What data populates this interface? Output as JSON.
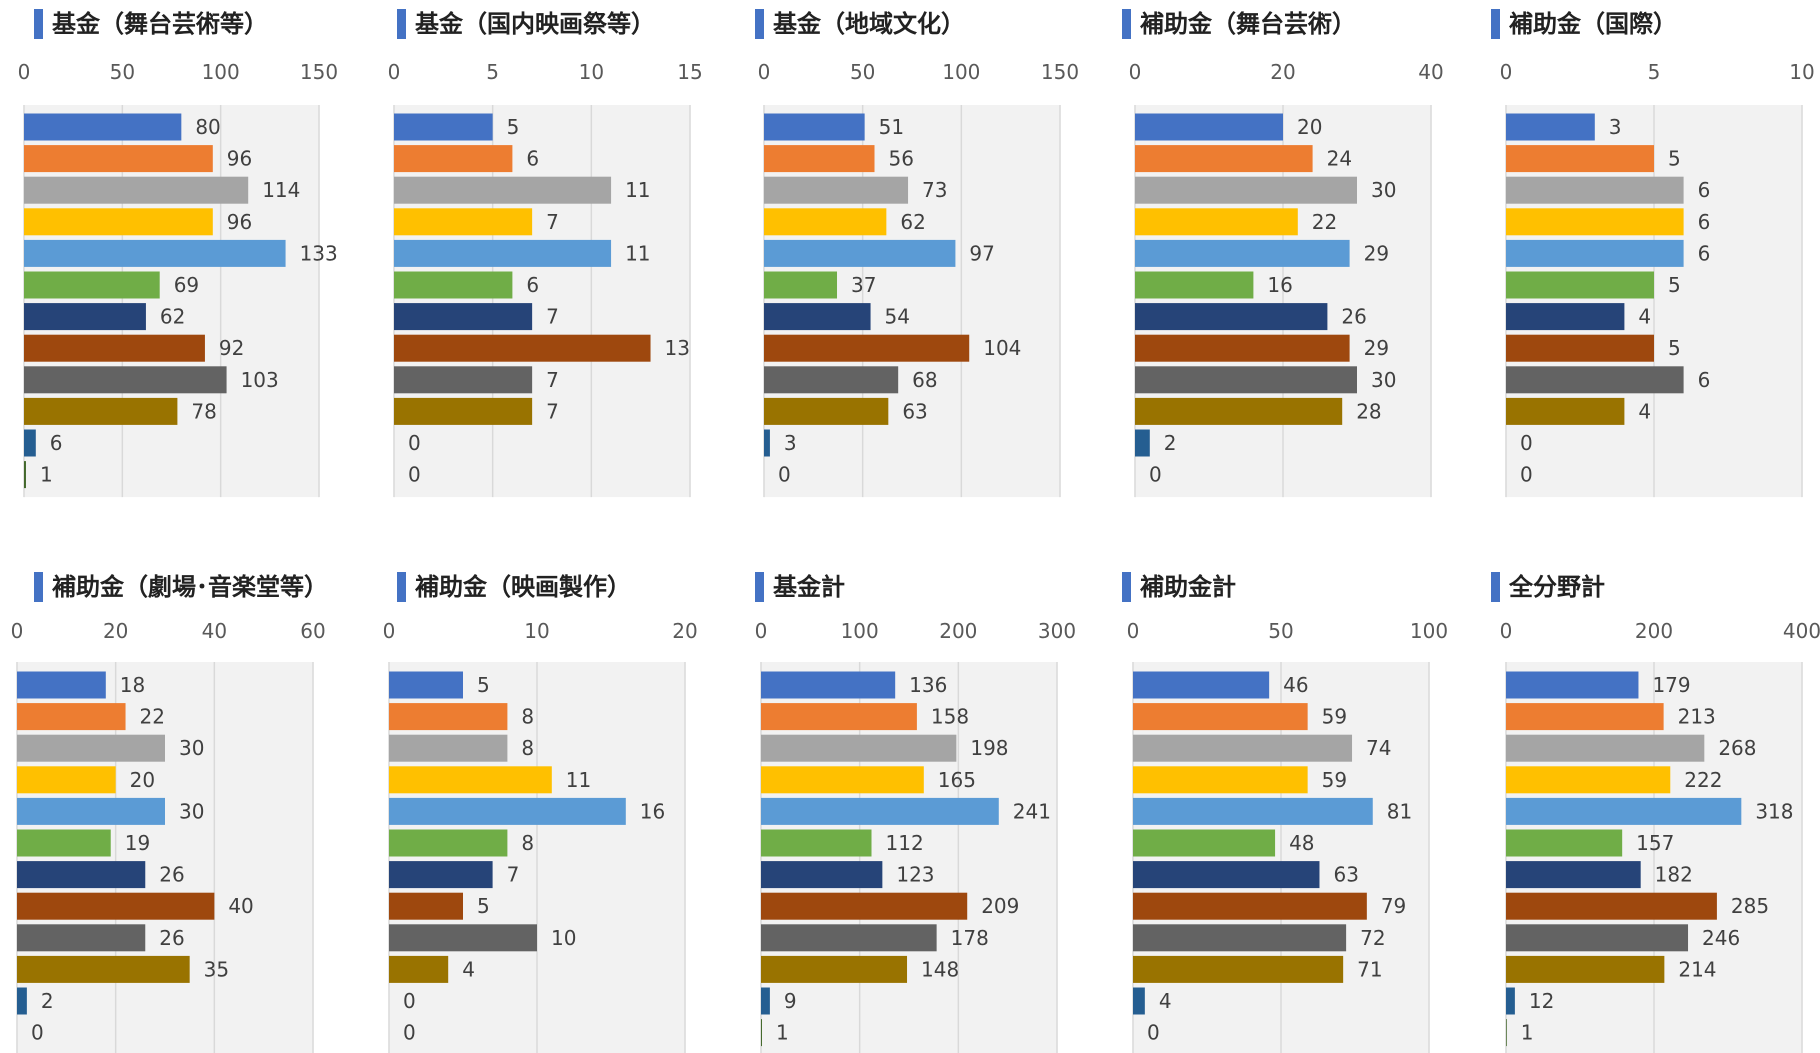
{
  "palette": [
    "#4472C4",
    "#ED7D31",
    "#A5A5A5",
    "#FFC000",
    "#5B9BD5",
    "#70AD47",
    "#264478",
    "#9E480E",
    "#636363",
    "#997300",
    "#255E91",
    "#43682B"
  ],
  "grid_color": "#D9D9D9",
  "plot_bg": "#F2F2F2",
  "chart_data": [
    {
      "type": "bar",
      "orientation": "horizontal",
      "title": "基金（舞台芸術等）",
      "ticks": [
        "0",
        "50",
        "100",
        "150"
      ],
      "xlim": [
        0,
        150
      ],
      "values": [
        80,
        96,
        114,
        96,
        133,
        69,
        62,
        92,
        103,
        78,
        6,
        1
      ]
    },
    {
      "type": "bar",
      "orientation": "horizontal",
      "title": "基金（国内映画祭等）",
      "ticks": [
        "0",
        "5",
        "10",
        "15"
      ],
      "xlim": [
        0,
        15
      ],
      "values": [
        5,
        6,
        11,
        7,
        11,
        6,
        7,
        13,
        7,
        7,
        0,
        0
      ]
    },
    {
      "type": "bar",
      "orientation": "horizontal",
      "title": "基金（地域文化）",
      "ticks": [
        "0",
        "50",
        "100",
        "150"
      ],
      "xlim": [
        0,
        150
      ],
      "values": [
        51,
        56,
        73,
        62,
        97,
        37,
        54,
        104,
        68,
        63,
        3,
        0
      ]
    },
    {
      "type": "bar",
      "orientation": "horizontal",
      "title": "補助金（舞台芸術）",
      "ticks": [
        "0",
        "20",
        "40"
      ],
      "xlim": [
        0,
        40
      ],
      "values": [
        20,
        24,
        30,
        22,
        29,
        16,
        26,
        29,
        30,
        28,
        2,
        0
      ]
    },
    {
      "type": "bar",
      "orientation": "horizontal",
      "title": "補助金（国際）",
      "ticks": [
        "0",
        "5",
        "10"
      ],
      "xlim": [
        0,
        10
      ],
      "values": [
        3,
        5,
        6,
        6,
        6,
        5,
        4,
        5,
        6,
        4,
        0,
        0
      ]
    },
    {
      "type": "bar",
      "orientation": "horizontal",
      "title": "補助金（劇場･音楽堂等）",
      "ticks": [
        "0",
        "20",
        "40",
        "60"
      ],
      "xlim": [
        0,
        60
      ],
      "values": [
        18,
        22,
        30,
        20,
        30,
        19,
        26,
        40,
        26,
        35,
        2,
        0
      ]
    },
    {
      "type": "bar",
      "orientation": "horizontal",
      "title": "補助金（映画製作）",
      "ticks": [
        "0",
        "10",
        "20"
      ],
      "xlim": [
        0,
        20
      ],
      "values": [
        5,
        8,
        8,
        11,
        16,
        8,
        7,
        5,
        10,
        4,
        0,
        0
      ]
    },
    {
      "type": "bar",
      "orientation": "horizontal",
      "title": "基金計",
      "ticks": [
        "0",
        "100",
        "200",
        "300"
      ],
      "xlim": [
        0,
        300
      ],
      "values": [
        136,
        158,
        198,
        165,
        241,
        112,
        123,
        209,
        178,
        148,
        9,
        1
      ]
    },
    {
      "type": "bar",
      "orientation": "horizontal",
      "title": "補助金計",
      "ticks": [
        "0",
        "50",
        "100"
      ],
      "xlim": [
        0,
        100
      ],
      "values": [
        46,
        59,
        74,
        59,
        81,
        48,
        63,
        79,
        72,
        71,
        4,
        0
      ]
    },
    {
      "type": "bar",
      "orientation": "horizontal",
      "title": "全分野計",
      "ticks": [
        "0",
        "200",
        "400"
      ],
      "xlim": [
        0,
        400
      ],
      "values": [
        179,
        213,
        268,
        222,
        318,
        157,
        182,
        285,
        246,
        214,
        12,
        1
      ]
    }
  ]
}
